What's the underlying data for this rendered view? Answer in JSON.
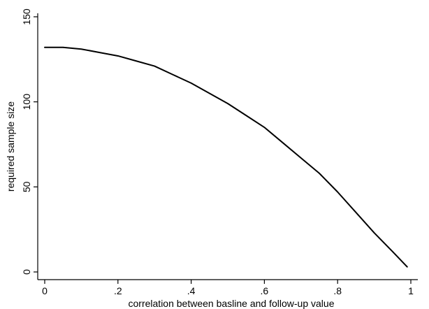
{
  "chart_data": {
    "type": "line",
    "title": "",
    "xlabel": "correlation between basline and follow-up value",
    "ylabel": "required sample size",
    "xlim": [
      0,
      1
    ],
    "ylim": [
      0,
      150
    ],
    "x_ticks": [
      {
        "value": 0,
        "label": "0"
      },
      {
        "value": 0.2,
        "label": ".2"
      },
      {
        "value": 0.4,
        "label": ".4"
      },
      {
        "value": 0.6,
        "label": ".6"
      },
      {
        "value": 0.8,
        "label": ".8"
      },
      {
        "value": 1,
        "label": "1"
      }
    ],
    "y_ticks": [
      {
        "value": 0,
        "label": "0"
      },
      {
        "value": 50,
        "label": "50"
      },
      {
        "value": 100,
        "label": "100"
      },
      {
        "value": 150,
        "label": "150"
      }
    ],
    "grid": false,
    "legend": "none",
    "line_color": "#000000",
    "series": [
      {
        "x": [
          0,
          0.05,
          0.1,
          0.15,
          0.2,
          0.25,
          0.3,
          0.35,
          0.4,
          0.45,
          0.5,
          0.55,
          0.6,
          0.65,
          0.7,
          0.75,
          0.8,
          0.85,
          0.9,
          0.95,
          0.99
        ],
        "y": [
          132,
          132,
          131,
          129,
          127,
          124,
          121,
          116,
          111,
          105,
          99,
          92,
          85,
          76,
          67,
          58,
          47,
          35,
          23,
          12,
          3
        ]
      }
    ]
  }
}
